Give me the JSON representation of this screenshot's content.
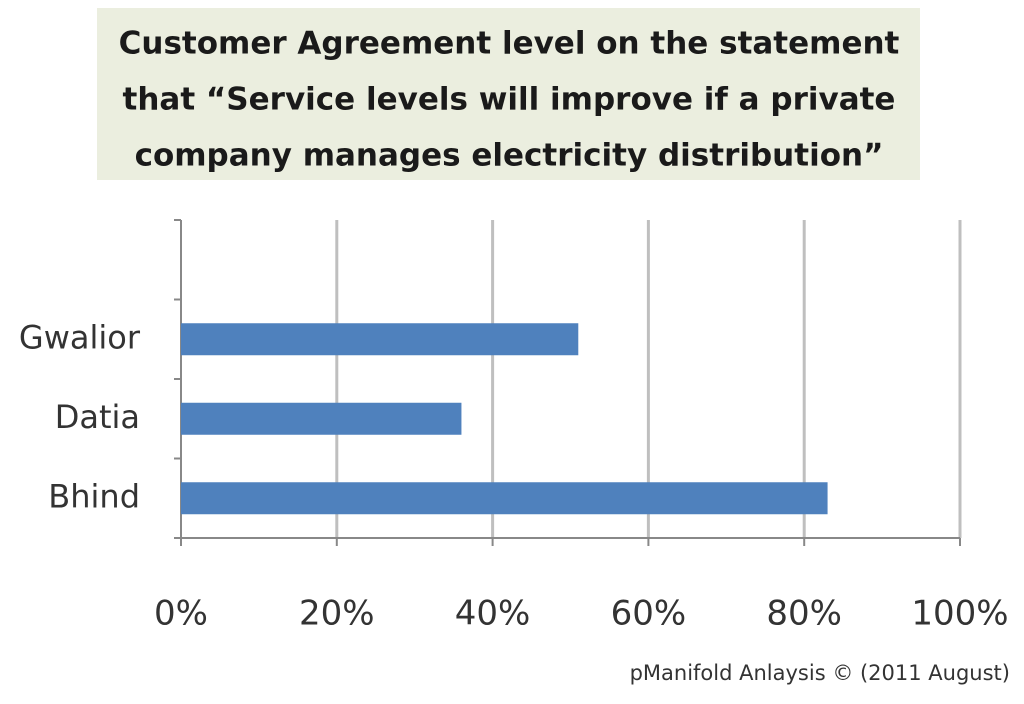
{
  "chart_data": {
    "type": "bar",
    "orientation": "horizontal",
    "title_lines": [
      "Customer Agreement level on the statement",
      "that “Service levels will improve if a private",
      "company manages electricity distribution”"
    ],
    "categories": [
      null,
      "Gwalior",
      "Datia",
      "Bhind"
    ],
    "values": [
      null,
      51,
      36,
      83
    ],
    "color": "#4f81bd",
    "xlim": [
      0,
      100
    ],
    "xticks": [
      {
        "value": 0,
        "label": "0%"
      },
      {
        "value": 20,
        "label": "20%"
      },
      {
        "value": 40,
        "label": "40%"
      },
      {
        "value": 60,
        "label": "60%"
      },
      {
        "value": 80,
        "label": "80%"
      },
      {
        "value": 100,
        "label": "100%"
      }
    ],
    "grid": true,
    "footnote": "pManifold Anlaysis © (2011 August)"
  }
}
